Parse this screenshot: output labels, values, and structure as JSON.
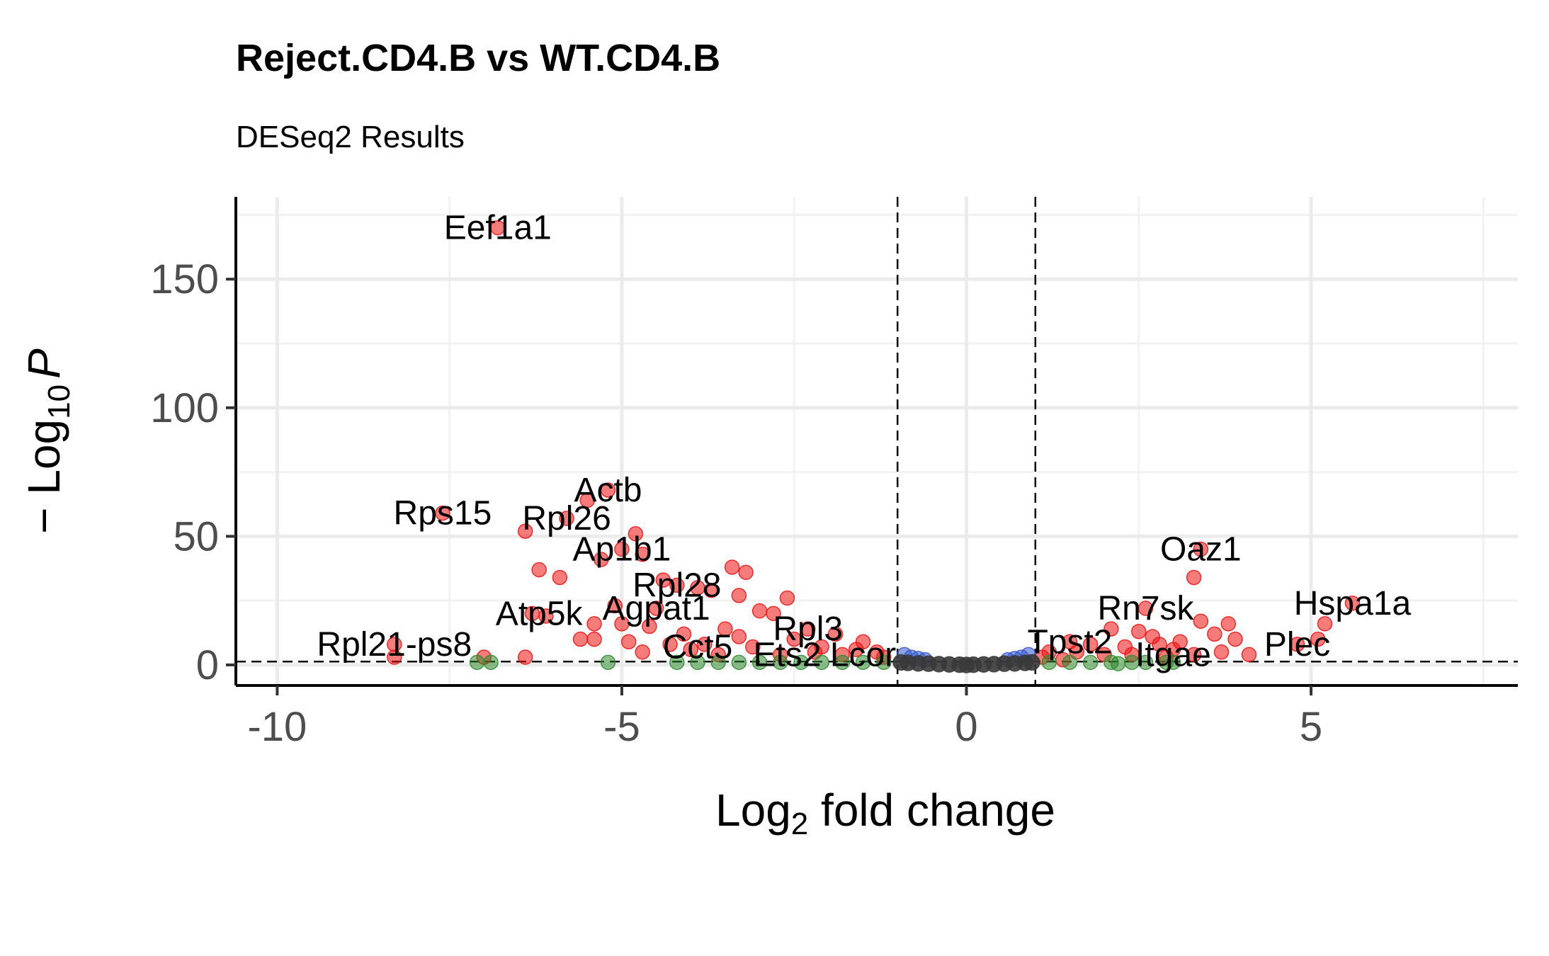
{
  "chart_data": {
    "type": "scatter",
    "title": "Reject.CD4.B vs WT.CD4.B",
    "subtitle": "DESeq2 Results",
    "xlabel": {
      "main": "Log",
      "sub": "2",
      "rest": " fold change"
    },
    "ylabel": {
      "prefix": "− Log",
      "sub": "10",
      "italic": "P"
    },
    "xlim": [
      -10.6,
      8
    ],
    "ylim": [
      -8,
      182
    ],
    "x_ticks": [
      -10,
      -5,
      0,
      5
    ],
    "x_tick_labels": [
      "-10",
      "-5",
      "0",
      "5"
    ],
    "y_ticks": [
      0,
      50,
      100,
      150
    ],
    "y_tick_labels": [
      "0",
      "50",
      "100",
      "150"
    ],
    "x_minor": [
      -7.5,
      -2.5,
      2.5,
      7.5
    ],
    "y_minor": [
      25,
      75,
      125,
      175
    ],
    "fc_cutoff": [
      -1,
      1
    ],
    "p_cutoff": 1.3,
    "grid": true,
    "legend": "none",
    "colors": {
      "NS": "#3a3a3a",
      "Log2 FC": "#2e8b2e",
      "p-value": "#3355cc",
      "p-value and log2 FC": "#ee1111"
    },
    "series": [
      {
        "category": "p-value and log2 FC",
        "color": "#ee1111",
        "points": [
          [
            -6.8,
            170
          ],
          [
            -5.2,
            68
          ],
          [
            -5.5,
            64
          ],
          [
            -5.8,
            57
          ],
          [
            -7.6,
            59
          ],
          [
            -6.4,
            52
          ],
          [
            -4.8,
            51
          ],
          [
            -5.0,
            45
          ],
          [
            -4.7,
            43
          ],
          [
            -5.3,
            41
          ],
          [
            -6.2,
            37
          ],
          [
            -5.9,
            34
          ],
          [
            -3.4,
            38
          ],
          [
            -3.2,
            36
          ],
          [
            -4.4,
            33
          ],
          [
            -4.2,
            31
          ],
          [
            -3.9,
            30
          ],
          [
            -3.7,
            29
          ],
          [
            -3.3,
            27
          ],
          [
            -2.6,
            26
          ],
          [
            -5.1,
            23
          ],
          [
            -4.5,
            22
          ],
          [
            -3.0,
            21
          ],
          [
            -2.8,
            20
          ],
          [
            -6.3,
            20
          ],
          [
            -6.1,
            19
          ],
          [
            -5.0,
            16
          ],
          [
            -5.4,
            16
          ],
          [
            -4.6,
            15
          ],
          [
            -3.5,
            14
          ],
          [
            -2.3,
            14
          ],
          [
            -1.9,
            12
          ],
          [
            -5.6,
            10
          ],
          [
            -5.4,
            10
          ],
          [
            -4.9,
            9
          ],
          [
            -4.3,
            8
          ],
          [
            -3.8,
            8
          ],
          [
            -3.1,
            7
          ],
          [
            -2.1,
            7
          ],
          [
            -1.6,
            6
          ],
          [
            -1.3,
            5
          ],
          [
            -8.3,
            8
          ],
          [
            -8.3,
            3
          ],
          [
            -6.4,
            3
          ],
          [
            -7.0,
            3
          ],
          [
            -4.7,
            5
          ],
          [
            -3.6,
            4
          ],
          [
            -2.7,
            4
          ],
          [
            -1.8,
            4
          ],
          [
            -1.2,
            3
          ],
          [
            -4.1,
            12
          ],
          [
            -3.3,
            11
          ],
          [
            -2.5,
            10
          ],
          [
            -1.5,
            9
          ],
          [
            -4.0,
            6
          ],
          [
            -2.2,
            5
          ],
          [
            3.4,
            45
          ],
          [
            3.3,
            34
          ],
          [
            5.6,
            24
          ],
          [
            2.6,
            22
          ],
          [
            3.4,
            17
          ],
          [
            5.2,
            16
          ],
          [
            3.8,
            16
          ],
          [
            2.1,
            14
          ],
          [
            2.5,
            13
          ],
          [
            3.6,
            12
          ],
          [
            3.9,
            10
          ],
          [
            4.8,
            8
          ],
          [
            5.1,
            10
          ],
          [
            4.1,
            4
          ],
          [
            1.5,
            9
          ],
          [
            1.8,
            8
          ],
          [
            2.3,
            7
          ],
          [
            2.8,
            8
          ],
          [
            3.0,
            6
          ],
          [
            1.2,
            5
          ],
          [
            1.6,
            5
          ],
          [
            2.0,
            4
          ],
          [
            2.4,
            4
          ],
          [
            2.9,
            3
          ],
          [
            3.3,
            4
          ],
          [
            3.7,
            5
          ],
          [
            1.1,
            3
          ],
          [
            1.4,
            2
          ],
          [
            2.7,
            11
          ],
          [
            3.1,
            9
          ]
        ]
      },
      {
        "category": "Log2 FC",
        "color": "#2e8b2e",
        "points": [
          [
            -7.1,
            1
          ],
          [
            -6.9,
            1
          ],
          [
            -5.2,
            1
          ],
          [
            -4.2,
            1
          ],
          [
            -3.9,
            1
          ],
          [
            -3.6,
            1
          ],
          [
            -3.3,
            1
          ],
          [
            -3.0,
            1
          ],
          [
            -2.7,
            1
          ],
          [
            -2.4,
            1
          ],
          [
            -2.1,
            1
          ],
          [
            -1.8,
            1
          ],
          [
            -1.5,
            1
          ],
          [
            -1.2,
            1
          ],
          [
            1.2,
            1
          ],
          [
            1.5,
            1
          ],
          [
            1.8,
            1
          ],
          [
            2.1,
            1
          ],
          [
            2.4,
            1
          ],
          [
            2.6,
            1
          ],
          [
            2.9,
            1
          ],
          [
            3.0,
            1
          ],
          [
            2.2,
            0.5
          ]
        ]
      },
      {
        "category": "p-value",
        "color": "#3355cc",
        "points": [
          [
            -0.9,
            4
          ],
          [
            -0.8,
            3
          ],
          [
            -0.7,
            2.5
          ],
          [
            -0.6,
            2
          ],
          [
            0.6,
            2
          ],
          [
            0.7,
            2.5
          ],
          [
            0.8,
            3
          ],
          [
            0.9,
            4
          ]
        ]
      },
      {
        "category": "NS",
        "color": "#3a3a3a",
        "points": [
          [
            -0.95,
            1
          ],
          [
            -0.85,
            0.8
          ],
          [
            -0.7,
            0.6
          ],
          [
            -0.55,
            0.5
          ],
          [
            -0.4,
            0.3
          ],
          [
            -0.25,
            0.2
          ],
          [
            -0.1,
            0.1
          ],
          [
            0.0,
            0.0
          ],
          [
            0.1,
            0.1
          ],
          [
            0.25,
            0.2
          ],
          [
            0.4,
            0.3
          ],
          [
            0.55,
            0.5
          ],
          [
            0.7,
            0.6
          ],
          [
            0.85,
            0.8
          ],
          [
            0.95,
            1
          ]
        ]
      }
    ],
    "labels": [
      {
        "text": "Eef1a1",
        "x": -6.8,
        "y": 170
      },
      {
        "text": "Actb",
        "x": -5.2,
        "y": 68
      },
      {
        "text": "Rps15",
        "x": -7.6,
        "y": 59
      },
      {
        "text": "Rpl26",
        "x": -5.8,
        "y": 57
      },
      {
        "text": "Ap1b1",
        "x": -5.0,
        "y": 45
      },
      {
        "text": "Rpl28",
        "x": -4.2,
        "y": 31
      },
      {
        "text": "Atp5k",
        "x": -6.2,
        "y": 20
      },
      {
        "text": "Agpat1",
        "x": -4.5,
        "y": 22
      },
      {
        "text": "Rpl3",
        "x": -2.3,
        "y": 14
      },
      {
        "text": "Rpl21-ps8",
        "x": -8.3,
        "y": 8
      },
      {
        "text": "Cct5",
        "x": -3.9,
        "y": 7
      },
      {
        "text": "Ets2",
        "x": -2.6,
        "y": 4
      },
      {
        "text": "Lcor",
        "x": -1.5,
        "y": 4
      },
      {
        "text": "Oaz1",
        "x": 3.4,
        "y": 45
      },
      {
        "text": "Rn7sk",
        "x": 2.6,
        "y": 22
      },
      {
        "text": "Hspa1a",
        "x": 5.6,
        "y": 24
      },
      {
        "text": "Tpst2",
        "x": 1.5,
        "y": 9
      },
      {
        "text": "Plec",
        "x": 4.8,
        "y": 8
      },
      {
        "text": "Itgae",
        "x": 3.0,
        "y": 4
      }
    ]
  }
}
